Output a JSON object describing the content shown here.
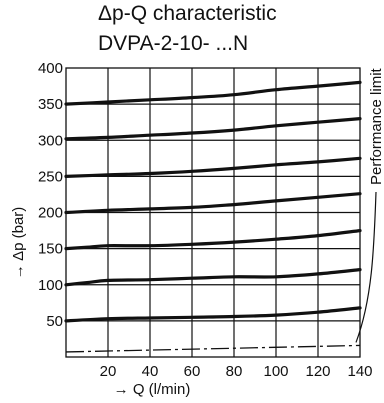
{
  "chart_data": {
    "type": "line",
    "title": "Δp-Q characteristic",
    "subtitle": "DVPA-2-10- ...N",
    "xlabel": "→ Q (l/min)",
    "ylabel": "→ Δp (bar)",
    "annotation": "Performance limit",
    "xlim": [
      0,
      140
    ],
    "ylim": [
      0,
      400
    ],
    "x_ticks": [
      "20",
      "40",
      "60",
      "80",
      "100",
      "120",
      "140"
    ],
    "y_ticks": [
      "50",
      "100",
      "150",
      "200",
      "250",
      "300",
      "350",
      "400"
    ],
    "grid": true,
    "series": [
      {
        "x": [
          0,
          20,
          40,
          60,
          80,
          100,
          120,
          140
        ],
        "values": [
          350,
          353,
          356,
          359,
          363,
          370,
          375,
          380
        ]
      },
      {
        "x": [
          0,
          20,
          40,
          60,
          80,
          100,
          120,
          140
        ],
        "values": [
          302,
          304,
          307,
          310,
          314,
          320,
          325,
          330
        ]
      },
      {
        "x": [
          0,
          20,
          40,
          60,
          80,
          100,
          120,
          140
        ],
        "values": [
          250,
          252,
          254,
          257,
          261,
          266,
          270,
          275
        ]
      },
      {
        "x": [
          0,
          20,
          40,
          60,
          80,
          100,
          120,
          140
        ],
        "values": [
          200,
          203,
          205,
          207,
          211,
          216,
          221,
          226
        ]
      },
      {
        "x": [
          0,
          10,
          20,
          40,
          60,
          80,
          100,
          120,
          140
        ],
        "values": [
          150,
          152,
          154,
          154,
          156,
          159,
          163,
          168,
          175
        ]
      },
      {
        "x": [
          0,
          10,
          20,
          40,
          60,
          80,
          100,
          120,
          140
        ],
        "values": [
          100,
          103,
          106,
          107,
          109,
          111,
          111,
          115,
          121
        ]
      },
      {
        "x": [
          0,
          20,
          40,
          60,
          80,
          100,
          120,
          140
        ],
        "values": [
          50,
          53,
          54,
          55,
          56,
          58,
          62,
          68
        ]
      }
    ],
    "limit_line": {
      "x": [
        0,
        140
      ],
      "values": [
        7,
        16
      ]
    }
  }
}
